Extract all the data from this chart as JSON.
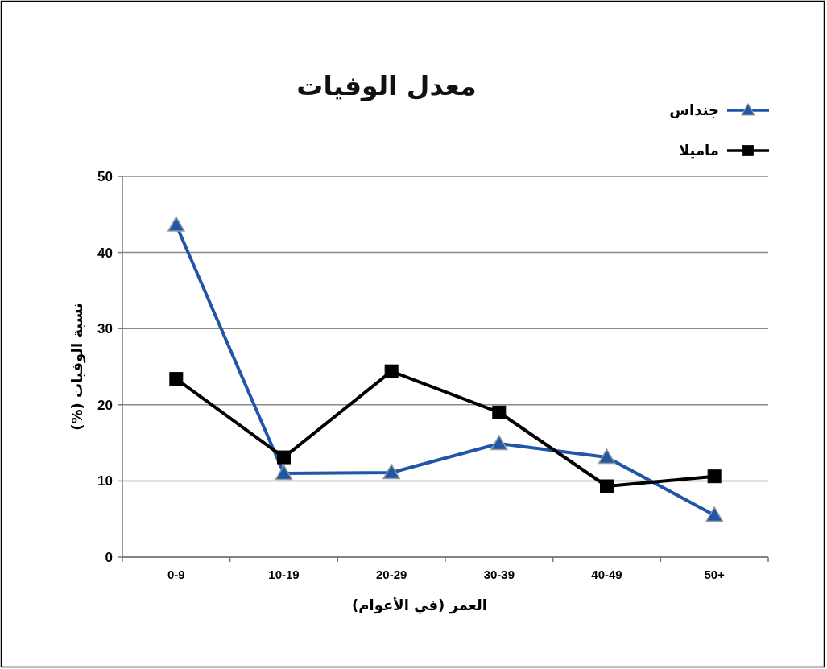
{
  "chart_data": {
    "type": "line",
    "title": "معدل الوفيات",
    "xlabel": "العمر (في الأعوام)",
    "ylabel": "نسبة الوفيات (%)",
    "categories": [
      "0-9",
      "10-19",
      "20-29",
      "30-39",
      "40-49",
      "50+"
    ],
    "series": [
      {
        "name": "جنداس",
        "color": "#1f56a8",
        "marker": "triangle",
        "values": [
          43.6,
          11.0,
          11.1,
          14.9,
          13.1,
          5.5
        ]
      },
      {
        "name": "ماميلا",
        "color": "#000000",
        "marker": "square",
        "values": [
          23.4,
          13.1,
          24.4,
          19.0,
          9.3,
          10.6
        ]
      }
    ],
    "ylim": [
      0,
      50
    ],
    "yticks": [
      0,
      10,
      20,
      30,
      40,
      50
    ],
    "grid": "y",
    "legend": "top right",
    "line_style": "solid"
  }
}
